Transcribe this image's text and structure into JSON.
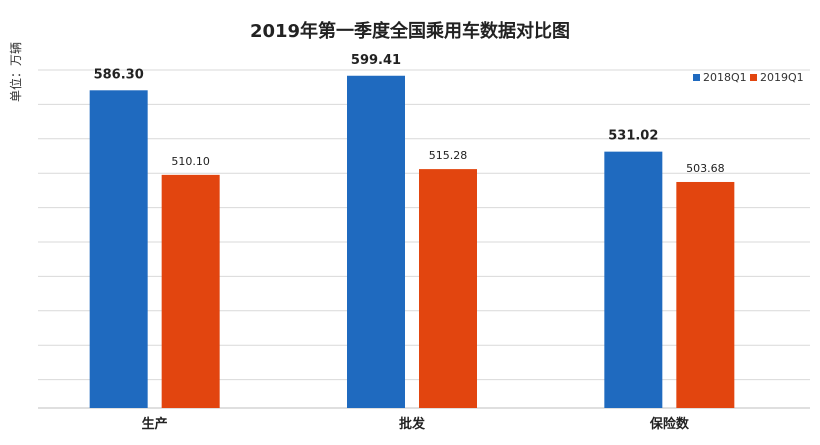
{
  "chart_data": {
    "type": "bar",
    "title": "2019年第一季度全国乘用车数据对比图",
    "unit_label": "单位：万辆",
    "categories": [
      "生产",
      "批发",
      "保险数"
    ],
    "series": [
      {
        "name": "2018Q1",
        "values": [
          586.3,
          599.41,
          531.02
        ],
        "color": "#1F6ABF"
      },
      {
        "name": "2019Q1",
        "values": [
          510.1,
          515.28,
          503.68
        ],
        "color": "#E2450F"
      }
    ],
    "data_labels": [
      [
        "586.30",
        "599.41",
        "531.02"
      ],
      [
        "510.10",
        "515.28",
        "503.68"
      ]
    ],
    "ylim": [
      300,
      610
    ],
    "grid": true,
    "legend_position": "top-right"
  }
}
